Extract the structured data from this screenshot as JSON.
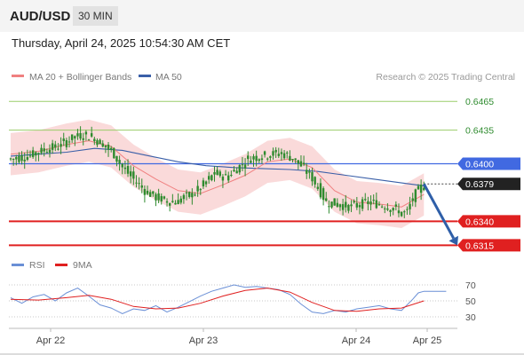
{
  "header": {
    "symbol": "AUD/USD",
    "timeframe": "30 MIN",
    "datetime": "Thursday, April 24, 2025 10:54:30 AM CET"
  },
  "legend": {
    "ma20_label": "MA 20 + Bollinger Bands",
    "ma50_label": "MA 50",
    "source": "Research © 2025 Trading Central"
  },
  "colors": {
    "candle": "#2e8b2e",
    "ma20": "#f08080",
    "bollinger": "#f9d3d3",
    "ma50": "#3a5fa8",
    "resistance": "#4169e1",
    "support": "#e02020",
    "target_green": "#9acd6a",
    "rsi": "#6a8fd6",
    "rsi_ma": "#e02020"
  },
  "chart_data": [
    {
      "type": "candlestick",
      "title": "",
      "x_ticks": [
        "Apr 22",
        "Apr 23",
        "Apr 24",
        "Apr 25"
      ],
      "ylim": [
        0.6308,
        0.648
      ],
      "levels": [
        {
          "value": 0.6465,
          "label": "0.6465",
          "kind": "target"
        },
        {
          "value": 0.6435,
          "label": "0.6435",
          "kind": "target"
        },
        {
          "value": 0.64,
          "label": "0.6400",
          "kind": "resistance"
        },
        {
          "value": 0.6379,
          "label": "0.6379",
          "kind": "last"
        },
        {
          "value": 0.634,
          "label": "0.6340",
          "kind": "support"
        },
        {
          "value": 0.6315,
          "label": "0.6315",
          "kind": "support"
        }
      ],
      "path_points": [
        [
          0,
          0.6405
        ],
        [
          6,
          0.6408
        ],
        [
          12,
          0.6415
        ],
        [
          17,
          0.6418
        ],
        [
          21,
          0.6426
        ],
        [
          25,
          0.643
        ],
        [
          29,
          0.6428
        ],
        [
          33,
          0.642
        ],
        [
          37,
          0.641
        ],
        [
          40,
          0.6396
        ],
        [
          44,
          0.6384
        ],
        [
          48,
          0.6372
        ],
        [
          52,
          0.6365
        ],
        [
          56,
          0.6361
        ],
        [
          59,
          0.636
        ],
        [
          62,
          0.6365
        ],
        [
          66,
          0.637
        ],
        [
          69,
          0.6378
        ],
        [
          73,
          0.639
        ],
        [
          77,
          0.6386
        ],
        [
          81,
          0.6395
        ],
        [
          85,
          0.6405
        ],
        [
          89,
          0.6408
        ],
        [
          93,
          0.641
        ],
        [
          97,
          0.6411
        ],
        [
          101,
          0.6406
        ],
        [
          104,
          0.6398
        ],
        [
          108,
          0.6385
        ],
        [
          113,
          0.636
        ],
        [
          117,
          0.6358
        ],
        [
          121,
          0.6355
        ],
        [
          125,
          0.6358
        ],
        [
          129,
          0.636
        ],
        [
          134,
          0.6356
        ],
        [
          138,
          0.6352
        ],
        [
          140,
          0.6348
        ],
        [
          142,
          0.635
        ],
        [
          144,
          0.6365
        ],
        [
          146,
          0.6372
        ],
        [
          148,
          0.6379
        ]
      ],
      "ma20_points": [
        [
          0,
          0.641
        ],
        [
          10,
          0.6413
        ],
        [
          20,
          0.642
        ],
        [
          28,
          0.6424
        ],
        [
          36,
          0.6418
        ],
        [
          44,
          0.6398
        ],
        [
          52,
          0.6384
        ],
        [
          60,
          0.6372
        ],
        [
          68,
          0.6369
        ],
        [
          76,
          0.6378
        ],
        [
          84,
          0.6388
        ],
        [
          92,
          0.6402
        ],
        [
          100,
          0.6405
        ],
        [
          108,
          0.6396
        ],
        [
          116,
          0.6372
        ],
        [
          124,
          0.636
        ],
        [
          132,
          0.6358
        ],
        [
          140,
          0.6355
        ],
        [
          148,
          0.6368
        ]
      ],
      "ma50_points": [
        [
          0,
          0.6408
        ],
        [
          10,
          0.641
        ],
        [
          20,
          0.6412
        ],
        [
          30,
          0.6416
        ],
        [
          40,
          0.6414
        ],
        [
          50,
          0.6408
        ],
        [
          60,
          0.6402
        ],
        [
          70,
          0.6398
        ],
        [
          80,
          0.6396
        ],
        [
          90,
          0.6395
        ],
        [
          100,
          0.6394
        ],
        [
          110,
          0.6392
        ],
        [
          120,
          0.6388
        ],
        [
          130,
          0.6384
        ],
        [
          140,
          0.638
        ],
        [
          148,
          0.6377
        ]
      ],
      "band_width": 0.0022,
      "forecast": {
        "from": [
          148,
          0.6379
        ],
        "to": [
          160,
          0.6315
        ]
      }
    },
    {
      "type": "line",
      "legend": [
        "RSI",
        "9MA"
      ],
      "y_ticks": [
        70,
        50,
        30
      ],
      "ylim": [
        20,
        80
      ],
      "rsi_points": [
        [
          0,
          54
        ],
        [
          4,
          47
        ],
        [
          8,
          55
        ],
        [
          12,
          58
        ],
        [
          16,
          50
        ],
        [
          20,
          60
        ],
        [
          24,
          66
        ],
        [
          28,
          56
        ],
        [
          32,
          45
        ],
        [
          36,
          41
        ],
        [
          40,
          34
        ],
        [
          44,
          40
        ],
        [
          48,
          38
        ],
        [
          52,
          44
        ],
        [
          56,
          36
        ],
        [
          60,
          42
        ],
        [
          64,
          49
        ],
        [
          68,
          56
        ],
        [
          72,
          62
        ],
        [
          76,
          66
        ],
        [
          80,
          70
        ],
        [
          84,
          67
        ],
        [
          88,
          68
        ],
        [
          92,
          66
        ],
        [
          96,
          64
        ],
        [
          100,
          58
        ],
        [
          104,
          46
        ],
        [
          108,
          36
        ],
        [
          112,
          34
        ],
        [
          116,
          38
        ],
        [
          120,
          36
        ],
        [
          124,
          40
        ],
        [
          128,
          42
        ],
        [
          132,
          44
        ],
        [
          136,
          40
        ],
        [
          140,
          38
        ],
        [
          144,
          52
        ],
        [
          146,
          60
        ],
        [
          148,
          62
        ],
        [
          156,
          62
        ]
      ],
      "ma_points": [
        [
          0,
          52
        ],
        [
          10,
          51
        ],
        [
          20,
          54
        ],
        [
          28,
          57
        ],
        [
          36,
          52
        ],
        [
          44,
          43
        ],
        [
          52,
          40
        ],
        [
          60,
          41
        ],
        [
          68,
          47
        ],
        [
          76,
          56
        ],
        [
          84,
          63
        ],
        [
          92,
          66
        ],
        [
          100,
          61
        ],
        [
          108,
          48
        ],
        [
          116,
          38
        ],
        [
          124,
          37
        ],
        [
          132,
          40
        ],
        [
          140,
          41
        ],
        [
          148,
          50
        ]
      ]
    }
  ]
}
